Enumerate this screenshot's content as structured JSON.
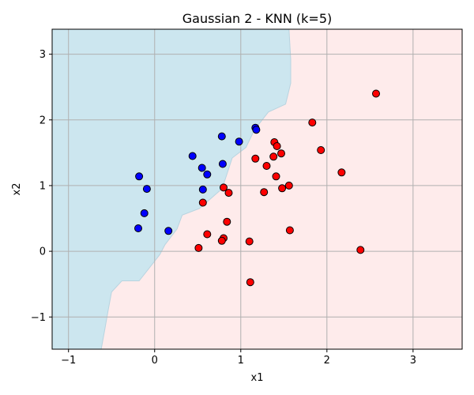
{
  "chart_data": {
    "type": "scatter",
    "title": "Gaussian 2 - KNN (k=5)",
    "xlabel": "x1",
    "ylabel": "x2",
    "xlim": [
      -1.19,
      3.57
    ],
    "ylim": [
      -1.49,
      3.38
    ],
    "xticks": [
      -1,
      0,
      1,
      2,
      3
    ],
    "yticks": [
      -1,
      0,
      1,
      2,
      3
    ],
    "xtick_labels": [
      "−1",
      "0",
      "1",
      "2",
      "3"
    ],
    "ytick_labels": [
      "−1",
      "0",
      "1",
      "2",
      "3"
    ],
    "grid": true,
    "colors": {
      "region_class0": "#cce6ef",
      "region_class1": "#feebeb",
      "class0_point": "#0000ff",
      "class1_point": "#ff0000",
      "point_edge": "#000000",
      "boundary": "#b8d4e0"
    },
    "decision_boundary": [
      [
        -0.62,
        -1.49
      ],
      [
        -0.58,
        -1.2
      ],
      [
        -0.54,
        -0.9
      ],
      [
        -0.5,
        -0.62
      ],
      [
        -0.38,
        -0.45
      ],
      [
        -0.18,
        -0.45
      ],
      [
        -0.06,
        -0.25
      ],
      [
        0.06,
        -0.05
      ],
      [
        0.12,
        0.1
      ],
      [
        0.26,
        0.34
      ],
      [
        0.32,
        0.55
      ],
      [
        0.52,
        0.65
      ],
      [
        0.78,
        0.95
      ],
      [
        0.82,
        1.1
      ],
      [
        0.9,
        1.42
      ],
      [
        1.06,
        1.58
      ],
      [
        1.16,
        1.85
      ],
      [
        1.32,
        2.12
      ],
      [
        1.52,
        2.24
      ],
      [
        1.58,
        2.56
      ],
      [
        1.58,
        2.92
      ],
      [
        1.56,
        3.38
      ]
    ],
    "series": [
      {
        "class": 0,
        "x": [
          -0.18,
          -0.09,
          -0.12,
          -0.19,
          0.16,
          0.44,
          0.55,
          0.61,
          0.56,
          0.78,
          0.79,
          0.98,
          1.17,
          1.18
        ],
        "y": [
          1.14,
          0.95,
          0.58,
          0.35,
          0.31,
          1.45,
          1.27,
          1.17,
          0.94,
          1.75,
          1.33,
          1.67,
          1.88,
          1.85
        ]
      },
      {
        "class": 1,
        "x": [
          0.56,
          0.8,
          0.86,
          0.61,
          0.84,
          0.8,
          0.78,
          0.51,
          1.1,
          1.11,
          1.17,
          1.27,
          1.3,
          1.38,
          1.39,
          1.42,
          1.41,
          1.47,
          1.48,
          1.56,
          1.57,
          1.83,
          1.93,
          2.17,
          2.39,
          2.57
        ],
        "y": [
          0.74,
          0.97,
          0.89,
          0.26,
          0.45,
          0.2,
          0.16,
          0.05,
          0.15,
          -0.47,
          1.41,
          0.9,
          1.3,
          1.44,
          1.66,
          1.6,
          1.14,
          1.49,
          0.96,
          1.0,
          0.32,
          1.96,
          1.54,
          1.2,
          0.02,
          2.4
        ]
      }
    ]
  }
}
